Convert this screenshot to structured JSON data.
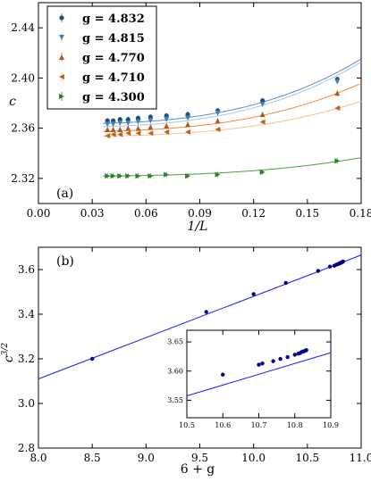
{
  "chart_data": [
    {
      "panel_label": "(a)",
      "type": "scatter",
      "xlabel": "1/L",
      "ylabel": "c",
      "xlim": [
        0.0,
        0.18
      ],
      "ylim": [
        2.3,
        2.46
      ],
      "xticks": [
        "0.00",
        "0.03",
        "0.06",
        "0.09",
        "0.12",
        "0.15",
        "0.18"
      ],
      "yticks": [
        "2.32",
        "2.36",
        "2.40",
        "2.44"
      ],
      "xtick_values": [
        0.0,
        0.03,
        0.06,
        0.09,
        0.12,
        0.15,
        0.18
      ],
      "ytick_values": [
        2.32,
        2.36,
        2.4,
        2.44
      ],
      "legend_position": "upper-left",
      "grid": false,
      "series": [
        {
          "name": "g = 4.832",
          "marker": "circle",
          "color": "#1f4e79",
          "fit_color": "#5b8fc7",
          "x": [
            0.0385,
            0.0417,
            0.0455,
            0.05,
            0.0556,
            0.0625,
            0.0714,
            0.0833,
            0.1,
            0.125,
            0.1667
          ],
          "y": [
            2.366,
            2.366,
            2.367,
            2.367,
            2.368,
            2.369,
            2.37,
            2.371,
            2.374,
            2.382,
            2.399
          ],
          "fit": {
            "a": 2.3634,
            "b": 0.0,
            "c": 1.48
          }
        },
        {
          "name": "g = 4.815",
          "marker": "triangle-down",
          "color": "#4a7fb5",
          "fit_color": "#a8c8e8",
          "x": [
            0.0385,
            0.0417,
            0.0455,
            0.05,
            0.0556,
            0.0625,
            0.0714,
            0.0833,
            0.1,
            0.125,
            0.1667
          ],
          "y": [
            2.363,
            2.363,
            2.364,
            2.364,
            2.365,
            2.366,
            2.367,
            2.368,
            2.372,
            2.379,
            2.397
          ],
          "fit": {
            "a": 2.3609,
            "b": 0.0,
            "c": 1.48
          }
        },
        {
          "name": "g = 4.770",
          "marker": "triangle-up",
          "color": "#b0561f",
          "fit_color": "#f0893a",
          "x": [
            0.0385,
            0.0417,
            0.0455,
            0.05,
            0.0556,
            0.0625,
            0.0714,
            0.0833,
            0.1,
            0.125,
            0.1667
          ],
          "y": [
            2.359,
            2.359,
            2.359,
            2.36,
            2.36,
            2.361,
            2.362,
            2.363,
            2.366,
            2.371,
            2.388
          ],
          "fit": {
            "a": 2.3573,
            "b": 0.0,
            "c": 1.1
          }
        },
        {
          "name": "g = 4.710",
          "marker": "triangle-left",
          "color": "#b8651f",
          "fit_color": "#f6c08c",
          "x": [
            0.0385,
            0.0417,
            0.0455,
            0.05,
            0.0556,
            0.0625,
            0.0714,
            0.0833,
            0.1,
            0.125,
            0.1667
          ],
          "y": [
            2.354,
            2.355,
            2.355,
            2.356,
            2.356,
            2.356,
            2.357,
            2.357,
            2.359,
            2.365,
            2.376
          ],
          "fit": {
            "a": 2.3535,
            "b": 0.0,
            "c": 0.8
          }
        },
        {
          "name": "g = 4.300",
          "marker": "triangle-right",
          "color": "#2e7d2e",
          "fit_color": "#3fa43f",
          "x": [
            0.0385,
            0.0417,
            0.0455,
            0.05,
            0.0556,
            0.0625,
            0.0714,
            0.0833,
            0.1,
            0.125,
            0.1667
          ],
          "y": [
            2.322,
            2.322,
            2.322,
            2.322,
            2.322,
            2.322,
            2.323,
            2.322,
            2.323,
            2.325,
            2.334
          ],
          "fit": {
            "a": 2.3218,
            "b": 0.0,
            "c": 0.42
          }
        }
      ]
    },
    {
      "panel_label": "(b)",
      "type": "scatter",
      "xlabel": "6 + g",
      "ylabel": "c^{3/2}",
      "xlim": [
        8.0,
        11.0
      ],
      "ylim": [
        2.8,
        3.7
      ],
      "xticks": [
        "8.0",
        "8.5",
        "9.0",
        "9.5",
        "10.0",
        "10.5",
        "11.0"
      ],
      "yticks": [
        "2.8",
        "3.0",
        "3.2",
        "3.4",
        "3.6"
      ],
      "xtick_values": [
        8.0,
        8.5,
        9.0,
        9.5,
        10.0,
        10.5,
        11.0
      ],
      "ytick_values": [
        2.8,
        3.0,
        3.2,
        3.4,
        3.6
      ],
      "color": "#00008b",
      "line_color": "#1a1aff",
      "x": [
        8.5,
        9.56,
        10.0,
        10.3,
        10.6,
        10.71,
        10.75,
        10.77,
        10.79,
        10.8,
        10.81,
        10.815,
        10.82,
        10.825,
        10.83,
        10.832
      ],
      "y": [
        3.2,
        3.41,
        3.49,
        3.54,
        3.594,
        3.613,
        3.617,
        3.622,
        3.625,
        3.628,
        3.63,
        3.631,
        3.633,
        3.634,
        3.635,
        3.636
      ],
      "fit_line": {
        "x0": 8.0,
        "y0": 3.11,
        "x1": 11.0,
        "y1": 3.665
      },
      "inset": {
        "xlim": [
          10.5,
          10.9
        ],
        "ylim": [
          3.52,
          3.67
        ],
        "xticks": [
          "10.5",
          "10.6",
          "10.7",
          "10.8",
          "10.9"
        ],
        "yticks": [
          "3.55",
          "3.60",
          "3.65"
        ],
        "xtick_values": [
          10.5,
          10.6,
          10.7,
          10.8,
          10.9
        ],
        "ytick_values": [
          3.55,
          3.6,
          3.65
        ],
        "x": [
          10.6,
          10.7,
          10.71,
          10.74,
          10.76,
          10.78,
          10.8,
          10.81,
          10.815,
          10.82,
          10.825,
          10.83,
          10.832
        ],
        "y": [
          3.594,
          3.611,
          3.613,
          3.617,
          3.621,
          3.624,
          3.628,
          3.63,
          3.631,
          3.633,
          3.634,
          3.635,
          3.636
        ]
      }
    }
  ]
}
